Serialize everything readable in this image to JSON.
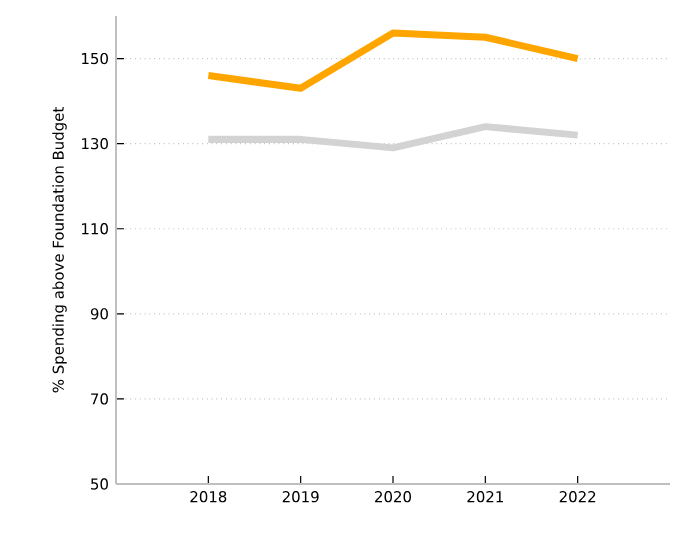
{
  "chart_data": {
    "type": "line",
    "ylabel": "% Spending above Foundation Budget",
    "x": [
      2018,
      2019,
      2020,
      2021,
      2022
    ],
    "series": [
      {
        "color": "#ffa500",
        "values": [
          146,
          143,
          156,
          155,
          150
        ]
      },
      {
        "color": "#d3d3d3",
        "values": [
          131,
          131,
          129,
          134,
          132
        ]
      }
    ],
    "xlim": [
      2017,
      2023
    ],
    "xticks": [
      2018,
      2019,
      2020,
      2021,
      2022
    ],
    "ylim": [
      50,
      160
    ],
    "yticks": [
      50,
      70,
      90,
      110,
      130,
      150
    ],
    "grid": "y",
    "marker": "none",
    "line_style": "solid"
  }
}
